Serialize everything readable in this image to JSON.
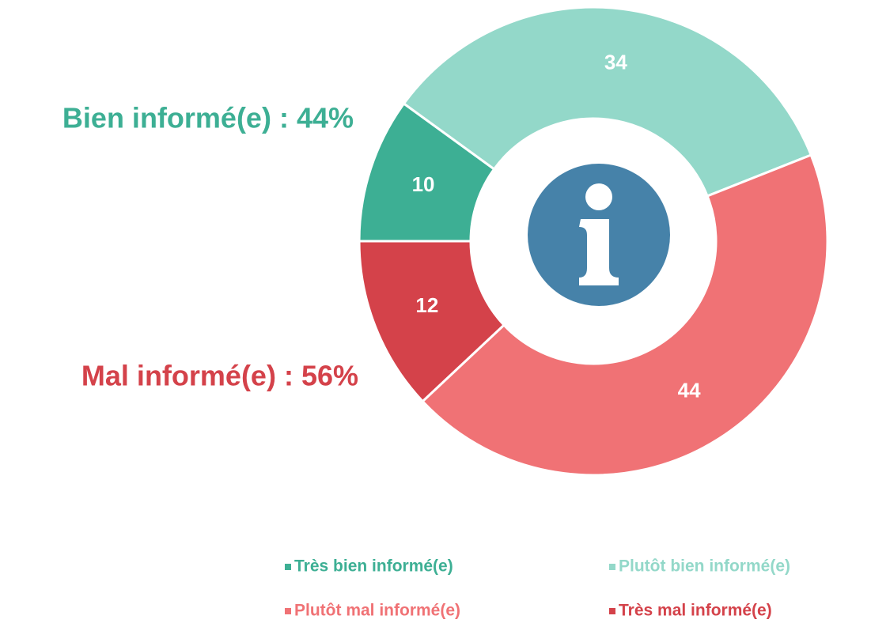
{
  "chart_data": {
    "type": "donut",
    "categories": [
      "Très bien informé(e)",
      "Plutôt bien informé(e)",
      "Plutôt mal informé(e)",
      "Très mal informé(e)"
    ],
    "values": [
      10,
      34,
      44,
      12
    ],
    "colors": [
      "#3daf94",
      "#93d8c9",
      "#f07275",
      "#d4424a"
    ],
    "annotations": [
      {
        "text": "Bien informé(e) : 44%",
        "color": "#3daf94"
      },
      {
        "text": "Mal informé(e) : 56%",
        "color": "#d4424a"
      }
    ],
    "legend": "bottom-right"
  }
}
